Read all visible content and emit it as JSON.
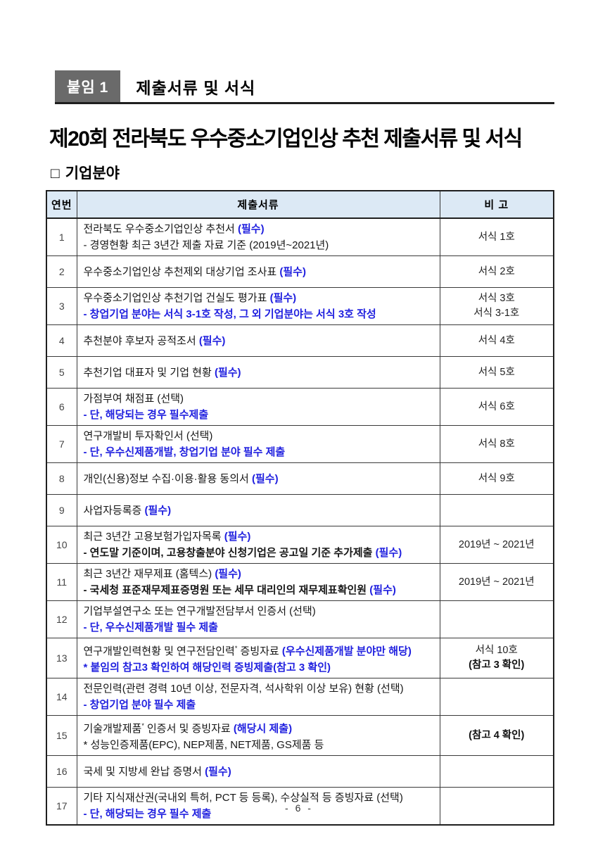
{
  "header": {
    "badge_label": "붙임",
    "badge_number": "1",
    "section_title": "제출서류 및 서식"
  },
  "title": "제20회 전라북도 우수중소기업인상 추천 제출서류 및 서식",
  "subsection": {
    "bullet": "□",
    "label": "기업분야"
  },
  "table": {
    "headers": {
      "no": "연번",
      "doc": "제출서류",
      "remark": "비 고"
    },
    "rows": [
      {
        "no": "1",
        "doc": [
          [
            {
              "t": "전라북도 우수중소기업인상 추천서 ",
              "s": "n"
            },
            {
              "t": "(필수)",
              "s": "b"
            }
          ],
          [
            {
              "t": "- 경영현황 최근 3년간 제출 자료 기준 (2019년~2021년)",
              "s": "n"
            }
          ]
        ],
        "remark": [
          {
            "t": "서식 1호",
            "s": "n"
          }
        ]
      },
      {
        "no": "2",
        "doc": [
          [
            {
              "t": "우수중소기업인상 추천제외 대상기업 조사표 ",
              "s": "n"
            },
            {
              "t": "(필수)",
              "s": "b"
            }
          ]
        ],
        "remark": [
          {
            "t": "서식 2호",
            "s": "n"
          }
        ]
      },
      {
        "no": "3",
        "doc": [
          [
            {
              "t": "우수중소기업인상 추천기업 건실도 평가표 ",
              "s": "n"
            },
            {
              "t": "(필수)",
              "s": "b"
            }
          ],
          [
            {
              "t": "- 창업기업 분야는 서식 3-1호 작성, 그 외 기업분야는 서식 3호 작성",
              "s": "b"
            }
          ]
        ],
        "remark": [
          {
            "t": "서식 3호",
            "s": "n"
          },
          {
            "t": "서식 3-1호",
            "s": "n"
          }
        ]
      },
      {
        "no": "4",
        "doc": [
          [
            {
              "t": "추천분야 후보자 공적조서 ",
              "s": "n"
            },
            {
              "t": "(필수)",
              "s": "b"
            }
          ]
        ],
        "remark": [
          {
            "t": "서식 4호",
            "s": "n"
          }
        ]
      },
      {
        "no": "5",
        "doc": [
          [
            {
              "t": "추천기업 대표자 및 기업 현황 ",
              "s": "n"
            },
            {
              "t": "(필수)",
              "s": "b"
            }
          ]
        ],
        "remark": [
          {
            "t": "서식 5호",
            "s": "n"
          }
        ]
      },
      {
        "no": "6",
        "doc": [
          [
            {
              "t": "가점부여 채점표 (선택)",
              "s": "n"
            }
          ],
          [
            {
              "t": "- 단, 해당되는 경우 필수제출",
              "s": "b"
            }
          ]
        ],
        "remark": [
          {
            "t": "서식 6호",
            "s": "n"
          }
        ]
      },
      {
        "no": "7",
        "doc": [
          [
            {
              "t": "연구개발비 투자확인서 (선택)",
              "s": "n"
            }
          ],
          [
            {
              "t": "- 단, 우수신제품개발, 창업기업 분야 필수 제출",
              "s": "b"
            }
          ]
        ],
        "remark": [
          {
            "t": "서식 8호",
            "s": "n"
          }
        ]
      },
      {
        "no": "8",
        "doc": [
          [
            {
              "t": "개인(신용)정보 수집·이용·활용 동의서 ",
              "s": "n"
            },
            {
              "t": "(필수)",
              "s": "b"
            }
          ]
        ],
        "remark": [
          {
            "t": "서식 9호",
            "s": "n"
          }
        ]
      },
      {
        "no": "9",
        "doc": [
          [
            {
              "t": "사업자등록증 ",
              "s": "n"
            },
            {
              "t": "(필수)",
              "s": "b"
            }
          ]
        ],
        "remark": []
      },
      {
        "no": "10",
        "doc": [
          [
            {
              "t": "최근 3년간 고용보험가입자목록 ",
              "s": "n"
            },
            {
              "t": "(필수)",
              "s": "b"
            }
          ],
          [
            {
              "t": "- 연도말 기준이며, 고용창출분야 신청기업은 공고일 기준 추가제출 ",
              "s": "k"
            },
            {
              "t": "(필수)",
              "s": "b"
            }
          ]
        ],
        "remark": [
          {
            "t": "2019년 ~ 2021년",
            "s": "n"
          }
        ]
      },
      {
        "no": "11",
        "doc": [
          [
            {
              "t": "최근 3년간 재무제표 (홈텍스) ",
              "s": "n"
            },
            {
              "t": "(필수)",
              "s": "b"
            }
          ],
          [
            {
              "t": "- 국세청 표준재무제표증명원 또는 세무 대리인의 재무제표확인원 ",
              "s": "k"
            },
            {
              "t": "(필수)",
              "s": "b"
            }
          ]
        ],
        "remark": [
          {
            "t": "2019년 ~ 2021년",
            "s": "n"
          }
        ]
      },
      {
        "no": "12",
        "doc": [
          [
            {
              "t": "기업부설연구소 또는 연구개발전담부서 인증서 (선택)",
              "s": "n"
            }
          ],
          [
            {
              "t": "- 단, 우수신제품개발 필수 제출",
              "s": "b"
            }
          ]
        ],
        "remark": []
      },
      {
        "no": "13",
        "doc": [
          [
            {
              "t": "연구개발인력현황 및 연구전담인력",
              "s": "n"
            },
            {
              "t": "*",
              "s": "sup"
            },
            {
              "t": " 증빙자료 ",
              "s": "n"
            },
            {
              "t": "(우수신제품개발 분야만 해당)",
              "s": "b"
            }
          ],
          [
            {
              "t": "* 붙임의 참고3 확인하여 해당인력 증빙제출(참고 3 확인)",
              "s": "b"
            }
          ]
        ],
        "remark": [
          {
            "t": "서식 10호",
            "s": "n"
          },
          {
            "t": "(참고 3 확인)",
            "s": "k"
          }
        ]
      },
      {
        "no": "14",
        "doc": [
          [
            {
              "t": "전문인력(관련 경력 10년 이상, 전문자격, 석사학위 이상 보유) 현황 (선택)",
              "s": "n"
            }
          ],
          [
            {
              "t": "- 창업기업 분야 필수 제출",
              "s": "b"
            }
          ]
        ],
        "remark": []
      },
      {
        "no": "15",
        "doc": [
          [
            {
              "t": "기술개발제품",
              "s": "n"
            },
            {
              "t": "*",
              "s": "sup"
            },
            {
              "t": " 인증서 및 증빙자료 ",
              "s": "n"
            },
            {
              "t": "(해당시 제출)",
              "s": "b"
            }
          ],
          [
            {
              "t": "* 성능인증제품(EPC), NEP제품, NET제품, GS제품 등",
              "s": "n"
            }
          ]
        ],
        "remark": [
          {
            "t": "(참고 4 확인)",
            "s": "k"
          }
        ]
      },
      {
        "no": "16",
        "doc": [
          [
            {
              "t": "국세 및 지방세 완납 증명서 ",
              "s": "n"
            },
            {
              "t": "(필수)",
              "s": "b"
            }
          ]
        ],
        "remark": []
      },
      {
        "no": "17",
        "doc": [
          [
            {
              "t": "기타 지식재산권(국내외 특허, PCT 등 등록), 수상실적 등 증빙자료 (선택)",
              "s": "n"
            }
          ],
          [
            {
              "t": "- 단, 해당되는 경우 필수 제출",
              "s": "b"
            }
          ]
        ],
        "remark": []
      }
    ]
  },
  "footer": {
    "page_number": "- 6 -"
  }
}
